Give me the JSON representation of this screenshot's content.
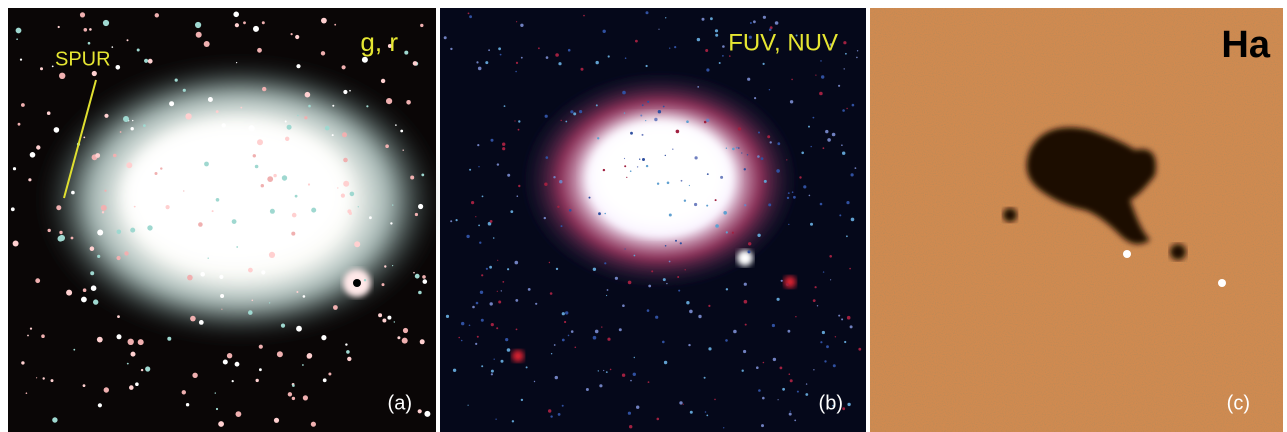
{
  "panels": [
    {
      "band": "g, r",
      "annotation": "SPUR",
      "tag": "(a)"
    },
    {
      "band": "FUV, NUV",
      "tag": "(b)"
    },
    {
      "band": "Ha",
      "tag": "(c)"
    }
  ]
}
